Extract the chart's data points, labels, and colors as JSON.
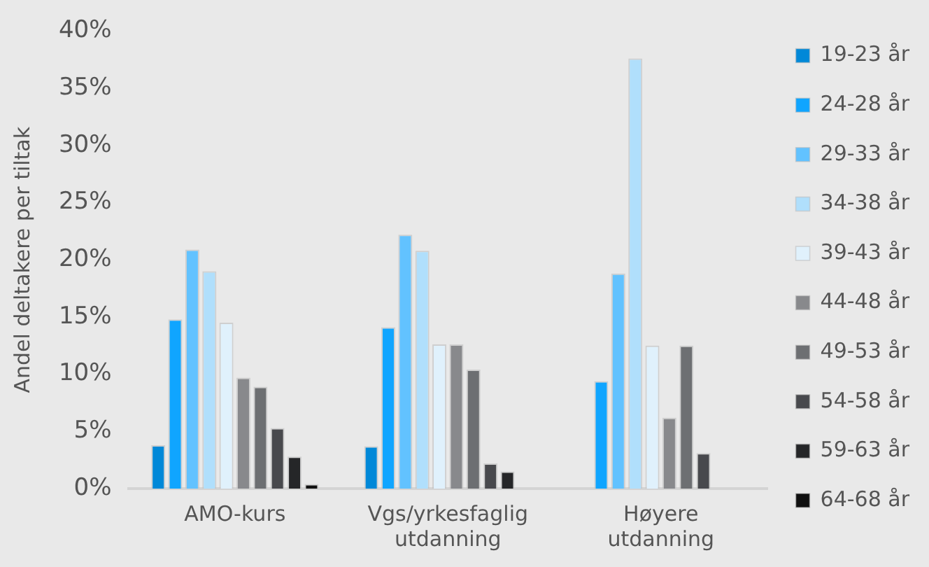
{
  "chart_data": {
    "type": "bar",
    "ylabel": "Andel deltakere per tiltak",
    "categories": [
      "AMO-kurs",
      "Vgs/yrkesfaglig utdanning",
      "Høyere utdanning"
    ],
    "ylim": [
      0,
      40
    ],
    "yticks": [
      {
        "value": 0,
        "label": "0%"
      },
      {
        "value": 5,
        "label": "5%"
      },
      {
        "value": 10,
        "label": "10%"
      },
      {
        "value": 15,
        "label": "15%"
      },
      {
        "value": 20,
        "label": "20%"
      },
      {
        "value": 25,
        "label": "25%"
      },
      {
        "value": 30,
        "label": "30%"
      },
      {
        "value": 35,
        "label": "35%"
      },
      {
        "value": 40,
        "label": "40%"
      }
    ],
    "grid": false,
    "legend": "right",
    "series": [
      {
        "name": "19-23 år",
        "color": "#0088d8",
        "values": [
          3.8,
          3.7,
          null
        ]
      },
      {
        "name": "24-28 år",
        "color": "#10a5ff",
        "values": [
          14.8,
          14.1,
          9.4
        ]
      },
      {
        "name": "29-33 år",
        "color": "#62c2ff",
        "values": [
          20.9,
          22.2,
          18.8
        ]
      },
      {
        "name": "34-38 år",
        "color": "#b0dffc",
        "values": [
          19.0,
          20.8,
          37.6
        ]
      },
      {
        "name": "39-43 år",
        "color": "#e0f1fc",
        "values": [
          14.5,
          12.6,
          12.5
        ]
      },
      {
        "name": "44-48 år",
        "color": "#88898c",
        "values": [
          9.7,
          12.6,
          6.2
        ]
      },
      {
        "name": "49-53 år",
        "color": "#6d6f72",
        "values": [
          8.9,
          10.4,
          12.5
        ]
      },
      {
        "name": "54-58 år",
        "color": "#48494d",
        "values": [
          5.3,
          2.2,
          3.1
        ]
      },
      {
        "name": "59-63 år",
        "color": "#252628",
        "values": [
          2.8,
          1.5,
          null
        ]
      },
      {
        "name": "64-68 år",
        "color": "#101010",
        "values": [
          0.4,
          null,
          null
        ]
      }
    ]
  }
}
